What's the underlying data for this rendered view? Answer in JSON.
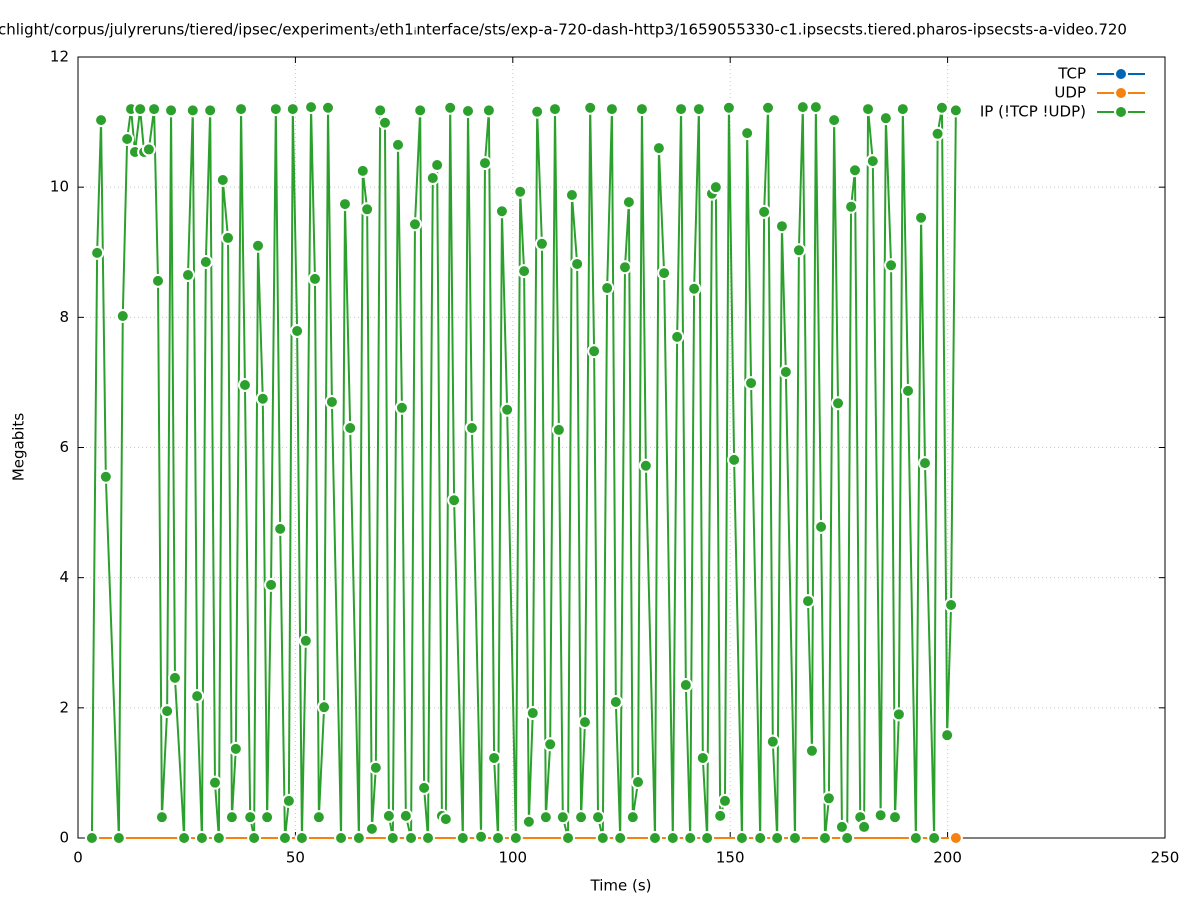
{
  "chart_data": {
    "type": "line",
    "title": "chlight/corpus/julyreruns/tiered/ipsec/experiment₃/eth1ᵢnterface/sts/exp-a-720-dash-http3/1659055330-c1.ipsecsts.tiered.pharos-ipsecsts-a-video.720",
    "xlabel": "Time (s)",
    "ylabel": "Megabits",
    "xlim": [
      0,
      250
    ],
    "xticks": [
      0,
      50,
      100,
      150,
      200,
      250
    ],
    "ylim": [
      0,
      12
    ],
    "yticks": [
      0,
      2,
      4,
      6,
      8,
      10,
      12
    ],
    "grid": true,
    "legend": "top-right",
    "series": [
      {
        "name": "TCP",
        "color": "#0066b3",
        "x": [],
        "values": []
      },
      {
        "name": "UDP",
        "color": "#f5820f",
        "x": [
          3.2,
          201.9
        ],
        "values": [
          0,
          0
        ]
      },
      {
        "name": "IP (!TCP  !UDP)",
        "color": "#2ca02c",
        "x": [
          3.2,
          4.4,
          5.3,
          6.4,
          9.4,
          10.3,
          11.3,
          12.2,
          13.1,
          14.3,
          15.2,
          16.3,
          17.5,
          18.4,
          19.3,
          20.5,
          21.4,
          22.3,
          24.4,
          25.3,
          26.4,
          27.4,
          28.5,
          29.4,
          30.4,
          31.5,
          32.4,
          33.3,
          34.5,
          35.4,
          36.3,
          37.5,
          38.4,
          39.6,
          40.5,
          41.4,
          42.5,
          43.5,
          44.4,
          45.5,
          46.5,
          47.6,
          48.5,
          49.4,
          50.4,
          51.5,
          52.4,
          53.6,
          54.5,
          55.4,
          56.6,
          57.5,
          58.4,
          60.5,
          61.4,
          62.6,
          64.6,
          65.5,
          66.5,
          67.6,
          68.5,
          69.5,
          70.6,
          71.5,
          72.4,
          73.6,
          74.5,
          75.4,
          76.6,
          77.5,
          78.7,
          79.6,
          80.5,
          81.6,
          82.6,
          83.7,
          84.6,
          85.6,
          86.5,
          88.5,
          89.7,
          90.6,
          92.7,
          93.6,
          94.5,
          95.7,
          96.6,
          97.5,
          98.7,
          100.7,
          101.7,
          102.6,
          103.7,
          104.6,
          105.6,
          106.7,
          107.6,
          108.6,
          109.7,
          110.6,
          111.5,
          112.7,
          113.6,
          114.8,
          115.7,
          116.6,
          117.8,
          118.7,
          119.6,
          120.7,
          121.7,
          122.8,
          123.7,
          124.7,
          125.8,
          126.7,
          127.6,
          128.8,
          129.7,
          130.6,
          132.7,
          133.6,
          134.8,
          136.8,
          137.8,
          138.7,
          139.8,
          140.8,
          141.7,
          142.8,
          143.7,
          144.7,
          145.8,
          146.7,
          147.7,
          148.8,
          149.7,
          150.9,
          152.7,
          153.9,
          154.8,
          156.9,
          157.8,
          158.7,
          159.8,
          160.8,
          161.9,
          162.8,
          164.9,
          165.8,
          166.7,
          167.9,
          168.8,
          169.7,
          170.9,
          171.8,
          172.7,
          173.9,
          174.8,
          175.7,
          176.9,
          177.8,
          178.7,
          179.9,
          180.8,
          181.7,
          182.8,
          184.6,
          185.8,
          187.0,
          187.9,
          188.8,
          189.7,
          190.9,
          192.7,
          193.9,
          194.8,
          196.9,
          197.7,
          198.7,
          199.9,
          200.8,
          201.9
        ],
        "values": [
          0,
          8.99,
          11.03,
          5.55,
          0,
          8.02,
          10.74,
          11.2,
          10.54,
          11.2,
          10.54,
          10.58,
          11.2,
          8.56,
          0.32,
          1.95,
          11.18,
          2.46,
          0,
          8.65,
          11.18,
          2.18,
          0,
          8.85,
          11.18,
          0.85,
          0,
          10.11,
          9.22,
          0.32,
          1.37,
          11.2,
          6.96,
          0.32,
          0,
          9.1,
          6.75,
          0.32,
          3.89,
          11.2,
          4.75,
          0,
          0.57,
          11.2,
          7.79,
          0,
          3.03,
          11.23,
          8.59,
          0.32,
          2.01,
          11.22,
          6.7,
          0,
          9.74,
          6.3,
          0,
          10.25,
          9.66,
          0.14,
          1.08,
          11.18,
          10.99,
          0.34,
          0,
          10.65,
          6.61,
          0.34,
          0,
          9.43,
          11.18,
          0.77,
          0,
          10.14,
          10.34,
          0.34,
          0.29,
          11.22,
          5.19,
          0,
          11.17,
          6.3,
          0.02,
          10.37,
          11.18,
          1.23,
          0,
          9.63,
          6.58,
          0,
          9.93,
          8.71,
          0.25,
          1.92,
          11.16,
          9.13,
          0.32,
          1.44,
          11.2,
          6.27,
          0.32,
          0,
          9.88,
          8.82,
          0.32,
          1.78,
          11.22,
          7.48,
          0.32,
          0,
          8.45,
          11.2,
          2.09,
          0,
          8.77,
          9.77,
          0.32,
          0.86,
          11.2,
          5.72,
          0,
          10.6,
          8.68,
          0,
          7.7,
          11.2,
          2.35,
          0,
          8.44,
          11.2,
          1.23,
          0,
          9.9,
          10.0,
          0.34,
          0.57,
          11.22,
          5.81,
          0,
          10.83,
          6.99,
          0,
          9.62,
          11.22,
          1.48,
          0,
          9.4,
          7.16,
          0,
          9.03,
          11.23,
          3.64,
          1.34,
          11.23,
          4.78,
          0,
          0.61,
          11.03,
          6.68,
          0.17,
          0,
          9.7,
          10.26,
          0.32,
          0.17,
          11.2,
          10.4,
          0.35,
          11.06,
          8.8,
          0.32,
          1.9,
          11.2,
          6.87,
          0,
          9.53,
          5.76,
          0,
          10.82,
          11.22,
          1.58,
          3.58,
          11.18
        ]
      }
    ]
  }
}
